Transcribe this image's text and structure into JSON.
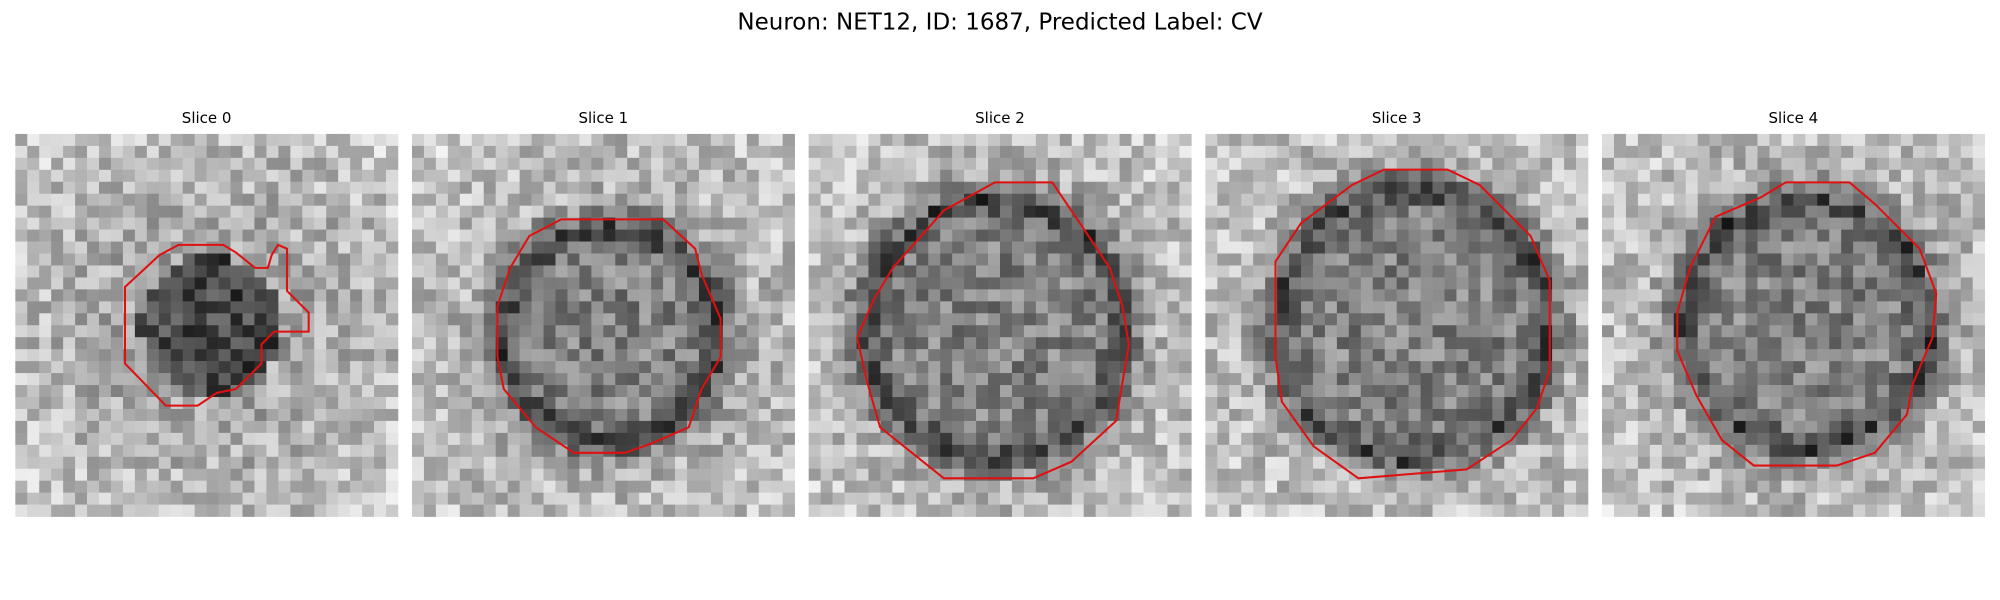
{
  "title": "Neuron: NET12, ID: 1687, Predicted Label: CV",
  "panels": [
    {
      "title": "Slice 0"
    },
    {
      "title": "Slice 1"
    },
    {
      "title": "Slice 2"
    },
    {
      "title": "Slice 3"
    },
    {
      "title": "Slice 4"
    }
  ]
}
